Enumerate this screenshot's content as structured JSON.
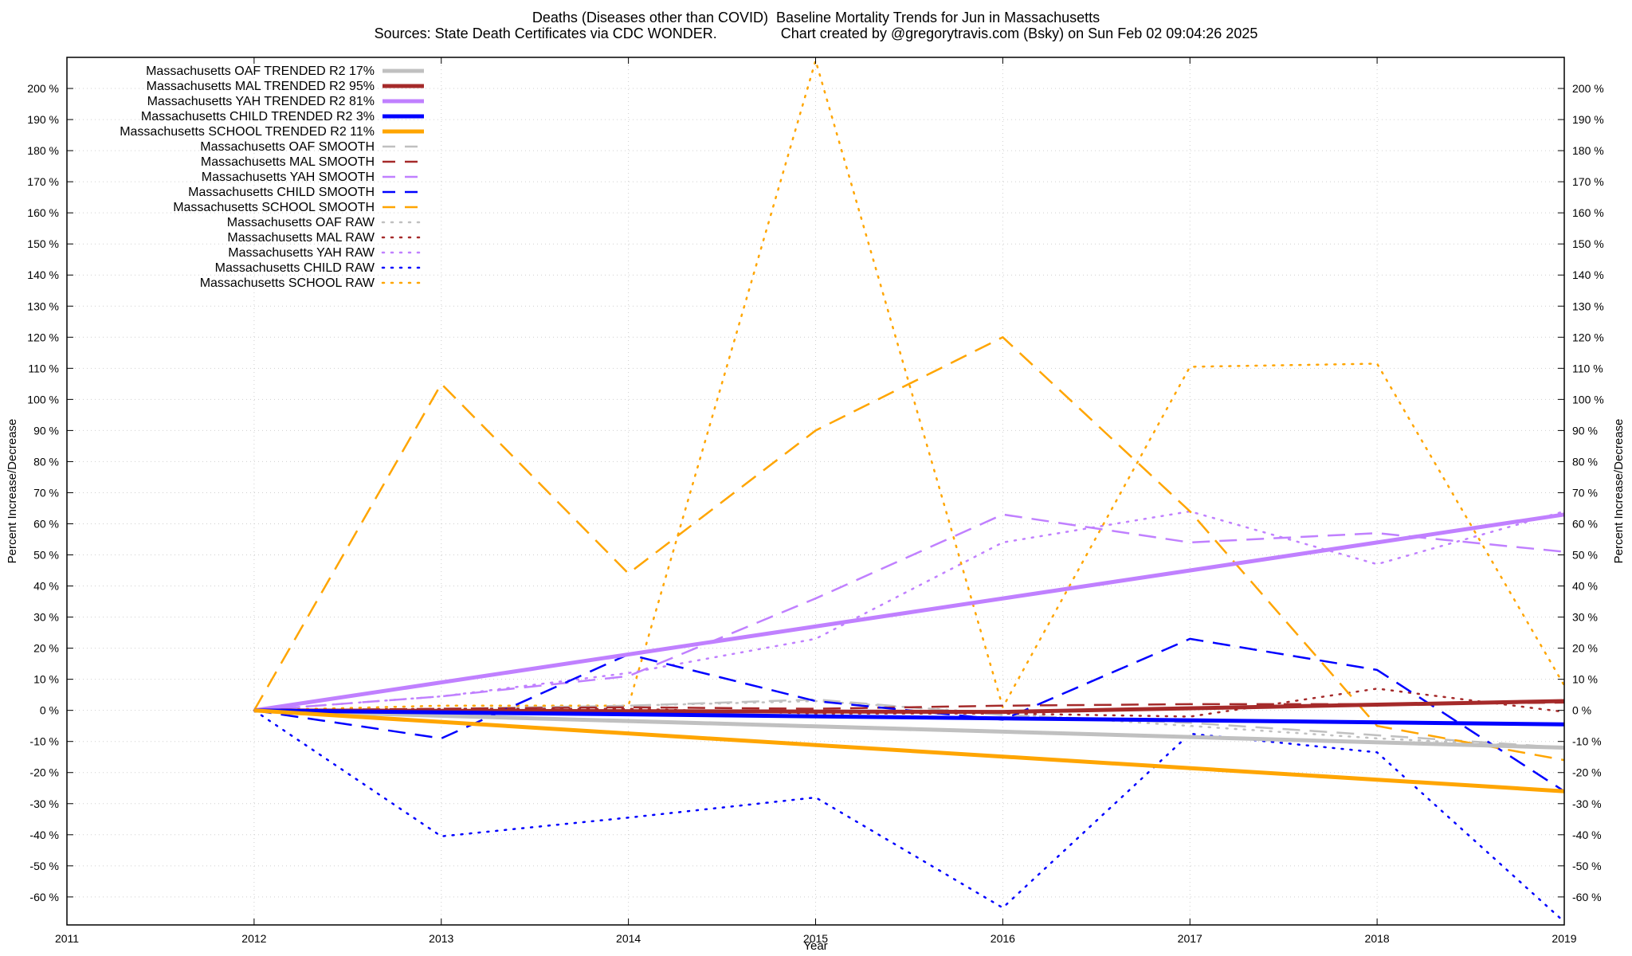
{
  "title_line1": "Deaths (Diseases other than COVID)  Baseline Mortality Trends for Jun in Massachusetts",
  "title_line2": "Sources: State Death Certificates via CDC WONDER.                Chart created by @gregorytravis.com (Bsky) on Sun Feb 02 09:04:26 2025",
  "chart_data": {
    "type": "line",
    "xlabel": "Year",
    "ylabel": "Percent Increase/Decrease",
    "y2label": "Percent Increase/Decrease",
    "xlim": [
      2011,
      2019
    ],
    "ylim": [
      -69,
      210
    ],
    "x_ticks": [
      "2011",
      "2012",
      "2013",
      "2014",
      "2015",
      "2016",
      "2017",
      "2018",
      "2019"
    ],
    "y_ticks": [
      -60,
      -50,
      -40,
      -30,
      -20,
      -10,
      0,
      10,
      20,
      30,
      40,
      50,
      60,
      70,
      80,
      90,
      100,
      110,
      120,
      130,
      140,
      150,
      160,
      170,
      180,
      190,
      200
    ],
    "y_tick_labels": [
      "-60 %",
      "-50 %",
      "-40 %",
      "-30 %",
      "-20 %",
      "-10 %",
      "0 %",
      "10 %",
      "20 %",
      "30 %",
      "40 %",
      "50 %",
      "60 %",
      "70 %",
      "80 %",
      "90 %",
      "100 %",
      "110 %",
      "120 %",
      "130 %",
      "140 %",
      "150 %",
      "160 %",
      "170 %",
      "180 %",
      "190 %",
      "200 %"
    ],
    "grid": true,
    "legend_position": "top-left",
    "series": [
      {
        "name": "Massachusetts OAF TRENDED R2  17%",
        "style": "solid",
        "color": "#c0c0c0",
        "x": [
          2012,
          2019
        ],
        "y": [
          0,
          -12
        ]
      },
      {
        "name": "Massachusetts MAL TRENDED R2  95%",
        "style": "solid",
        "color": "#a52a2a",
        "x": [
          2012,
          2016,
          2019
        ],
        "y": [
          0,
          -0.5,
          3
        ]
      },
      {
        "name": "Massachusetts YAH TRENDED R2  81%",
        "style": "solid",
        "color": "#c080ff",
        "x": [
          2012,
          2019
        ],
        "y": [
          0,
          63
        ]
      },
      {
        "name": "Massachusetts CHILD TRENDED R2  3%",
        "style": "solid",
        "color": "#0000ff",
        "x": [
          2012,
          2019
        ],
        "y": [
          0,
          -4.5
        ]
      },
      {
        "name": "Massachusetts SCHOOL TRENDED R2  11%",
        "style": "solid",
        "color": "#ffa500",
        "x": [
          2012,
          2019
        ],
        "y": [
          0,
          -26
        ]
      },
      {
        "name": "Massachusetts OAF SMOOTH",
        "style": "dashed",
        "color": "#c0c0c0",
        "x": [
          2012,
          2013,
          2014,
          2015,
          2016,
          2017,
          2018,
          2019
        ],
        "y": [
          0,
          0.5,
          1.5,
          3.5,
          -1.5,
          -4,
          -8,
          -12
        ]
      },
      {
        "name": "Massachusetts MAL SMOOTH",
        "style": "dashed",
        "color": "#a52a2a",
        "x": [
          2012,
          2013,
          2014,
          2015,
          2016,
          2017,
          2018,
          2019
        ],
        "y": [
          0,
          0.5,
          1,
          0.5,
          1.5,
          2,
          2,
          2.5
        ]
      },
      {
        "name": "Massachusetts YAH SMOOTH",
        "style": "dashed",
        "color": "#c080ff",
        "x": [
          2012,
          2013,
          2014,
          2015,
          2016,
          2017,
          2018,
          2019
        ],
        "y": [
          0,
          4.5,
          11,
          36,
          63,
          54,
          57,
          51
        ]
      },
      {
        "name": "Massachusetts CHILD SMOOTH",
        "style": "dashed",
        "color": "#0000ff",
        "x": [
          2012,
          2013,
          2014,
          2015,
          2016,
          2017,
          2018,
          2019
        ],
        "y": [
          0,
          -9,
          18,
          3,
          -3,
          23,
          13,
          -26
        ]
      },
      {
        "name": "Massachusetts SCHOOL SMOOTH",
        "style": "dashed",
        "color": "#ffa500",
        "x": [
          2012,
          2013,
          2014,
          2015,
          2016,
          2017,
          2018,
          2019
        ],
        "y": [
          0,
          105,
          44,
          90,
          120,
          64,
          -5,
          -16
        ]
      },
      {
        "name": "Massachusetts OAF RAW",
        "style": "dotted",
        "color": "#c0c0c0",
        "x": [
          2012,
          2013,
          2014,
          2015,
          2016,
          2017,
          2018,
          2019
        ],
        "y": [
          0,
          0.5,
          1.5,
          3,
          -1,
          -5,
          -9,
          -12
        ]
      },
      {
        "name": "Massachusetts MAL RAW",
        "style": "dotted",
        "color": "#a52a2a",
        "x": [
          2012,
          2013,
          2014,
          2015,
          2016,
          2017,
          2018,
          2019
        ],
        "y": [
          0,
          0.5,
          0.5,
          -1,
          -1,
          -2,
          7,
          -0.5
        ]
      },
      {
        "name": "Massachusetts YAH RAW",
        "style": "dotted",
        "color": "#c080ff",
        "x": [
          2012,
          2013,
          2014,
          2015,
          2016,
          2017,
          2018,
          2019
        ],
        "y": [
          0,
          4.5,
          12,
          23,
          54,
          64,
          47,
          64
        ]
      },
      {
        "name": "Massachusetts CHILD RAW",
        "style": "dotted",
        "color": "#0000ff",
        "x": [
          2012,
          2013,
          2014,
          2015,
          2016,
          2017,
          2018,
          2019
        ],
        "y": [
          0,
          -40.5,
          -34.5,
          -28,
          -63.5,
          -7.5,
          -13.5,
          -68
        ]
      },
      {
        "name": "Massachusetts SCHOOL RAW",
        "style": "dotted",
        "color": "#ffa500",
        "x": [
          2012,
          2013,
          2014,
          2015,
          2016,
          2017,
          2018,
          2019
        ],
        "y": [
          0,
          1.5,
          1.5,
          209,
          1,
          110.5,
          111.5,
          8
        ]
      }
    ]
  }
}
